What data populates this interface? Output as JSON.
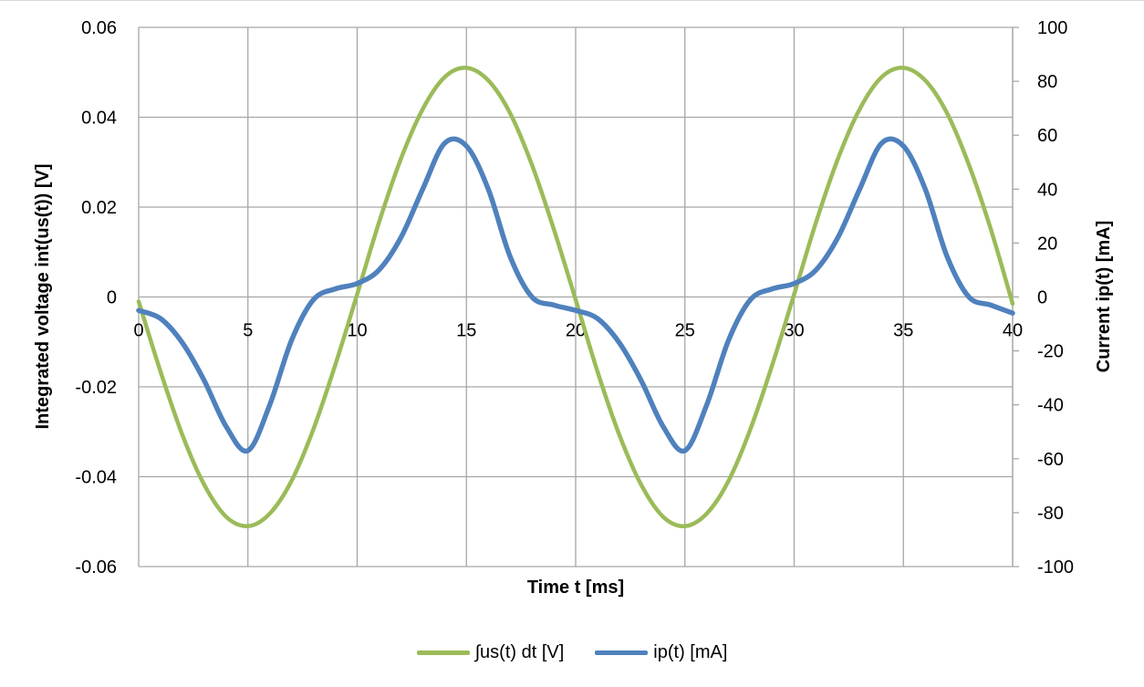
{
  "chart_data": {
    "type": "line",
    "title": "",
    "xlabel": "Time t [ms]",
    "ylabel": "Integrated voltage int(us(t)) [V]",
    "y2label": "Current ip(t) [mA]",
    "xlim": [
      0,
      40
    ],
    "ylim": [
      -0.06,
      0.06
    ],
    "y2lim": [
      -100,
      100
    ],
    "grid": true,
    "legend_position": "bottom",
    "x_ticks": [
      "0",
      "5",
      "10",
      "15",
      "20",
      "25",
      "30",
      "35",
      "40"
    ],
    "y_ticks": [
      "0.06",
      "0.04",
      "0.02",
      "0",
      "-0.02",
      "-0.04",
      "-0.06"
    ],
    "y2_ticks": [
      "100",
      "80",
      "60",
      "40",
      "20",
      "0",
      "-20",
      "-40",
      "-60",
      "-80",
      "-100"
    ],
    "series": [
      {
        "name": "∫us(t) dt [V]",
        "axis": "left",
        "color": "#9bbb59",
        "x": [
          0,
          1,
          2,
          3,
          4,
          5,
          6,
          7,
          8,
          9,
          10,
          11,
          12,
          13,
          14,
          15,
          16,
          17,
          18,
          19,
          20,
          21,
          22,
          23,
          24,
          25,
          26,
          27,
          28,
          29,
          30,
          31,
          32,
          33,
          34,
          35,
          36,
          37,
          38,
          39,
          40
        ],
        "values": [
          -0.001,
          -0.0166,
          -0.0307,
          -0.0418,
          -0.0489,
          -0.051,
          -0.0482,
          -0.0409,
          -0.0294,
          -0.0151,
          0.0006,
          0.0166,
          0.0307,
          0.0418,
          0.0489,
          0.051,
          0.0482,
          0.0409,
          0.0294,
          0.0151,
          -0.0006,
          -0.0166,
          -0.0307,
          -0.0418,
          -0.0489,
          -0.051,
          -0.0482,
          -0.0409,
          -0.0294,
          -0.0151,
          0.0006,
          0.0166,
          0.0307,
          0.0418,
          0.0489,
          0.051,
          0.0482,
          0.0409,
          0.0294,
          0.0151,
          -0.0015
        ]
      },
      {
        "name": "ip(t) [mA]",
        "axis": "right",
        "color": "#4f81bd",
        "x": [
          0,
          1,
          2,
          3,
          4,
          5,
          6,
          7,
          8,
          9,
          10,
          11,
          12,
          13,
          14,
          15,
          16,
          17,
          18,
          19,
          20,
          21,
          22,
          23,
          24,
          25,
          26,
          27,
          28,
          29,
          30,
          31,
          32,
          33,
          34,
          35,
          36,
          37,
          38,
          39,
          40
        ],
        "values": [
          -5,
          -8,
          -17,
          -31,
          -48,
          -57,
          -40,
          -16,
          -1,
          3,
          5,
          10,
          22,
          40,
          57,
          56,
          40,
          15,
          0,
          -3,
          -5,
          -8,
          -17,
          -31,
          -48,
          -57,
          -40,
          -16,
          -1,
          3,
          5,
          10,
          22,
          40,
          57,
          56,
          40,
          15,
          0,
          -3,
          -6
        ]
      }
    ]
  }
}
